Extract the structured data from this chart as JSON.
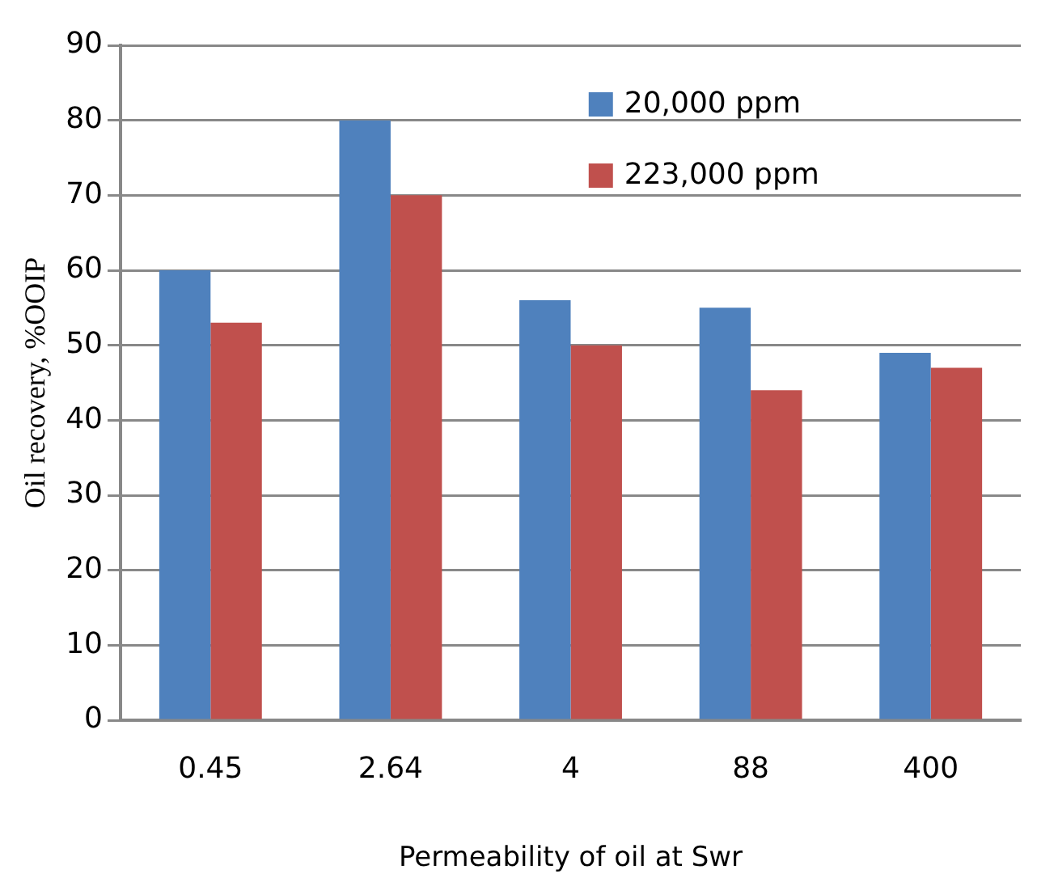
{
  "chart_data": {
    "type": "bar",
    "xlabel": "Permeability of oil at Swr",
    "ylabel": "Oil recovery, %OOIP",
    "categories": [
      "0.45",
      "2.64",
      "4",
      "88",
      "400"
    ],
    "series": [
      {
        "name": "20,000 ppm",
        "color": "#4f81bd",
        "values": [
          60,
          80,
          56,
          55,
          49
        ]
      },
      {
        "name": "223,000 ppm",
        "color": "#c0504d",
        "values": [
          53,
          70,
          50,
          44,
          47
        ]
      }
    ],
    "ylim": [
      0,
      90
    ],
    "yticks": [
      0,
      10,
      20,
      30,
      40,
      50,
      60,
      70,
      80,
      90
    ],
    "grid": "y",
    "legend": "top right"
  }
}
